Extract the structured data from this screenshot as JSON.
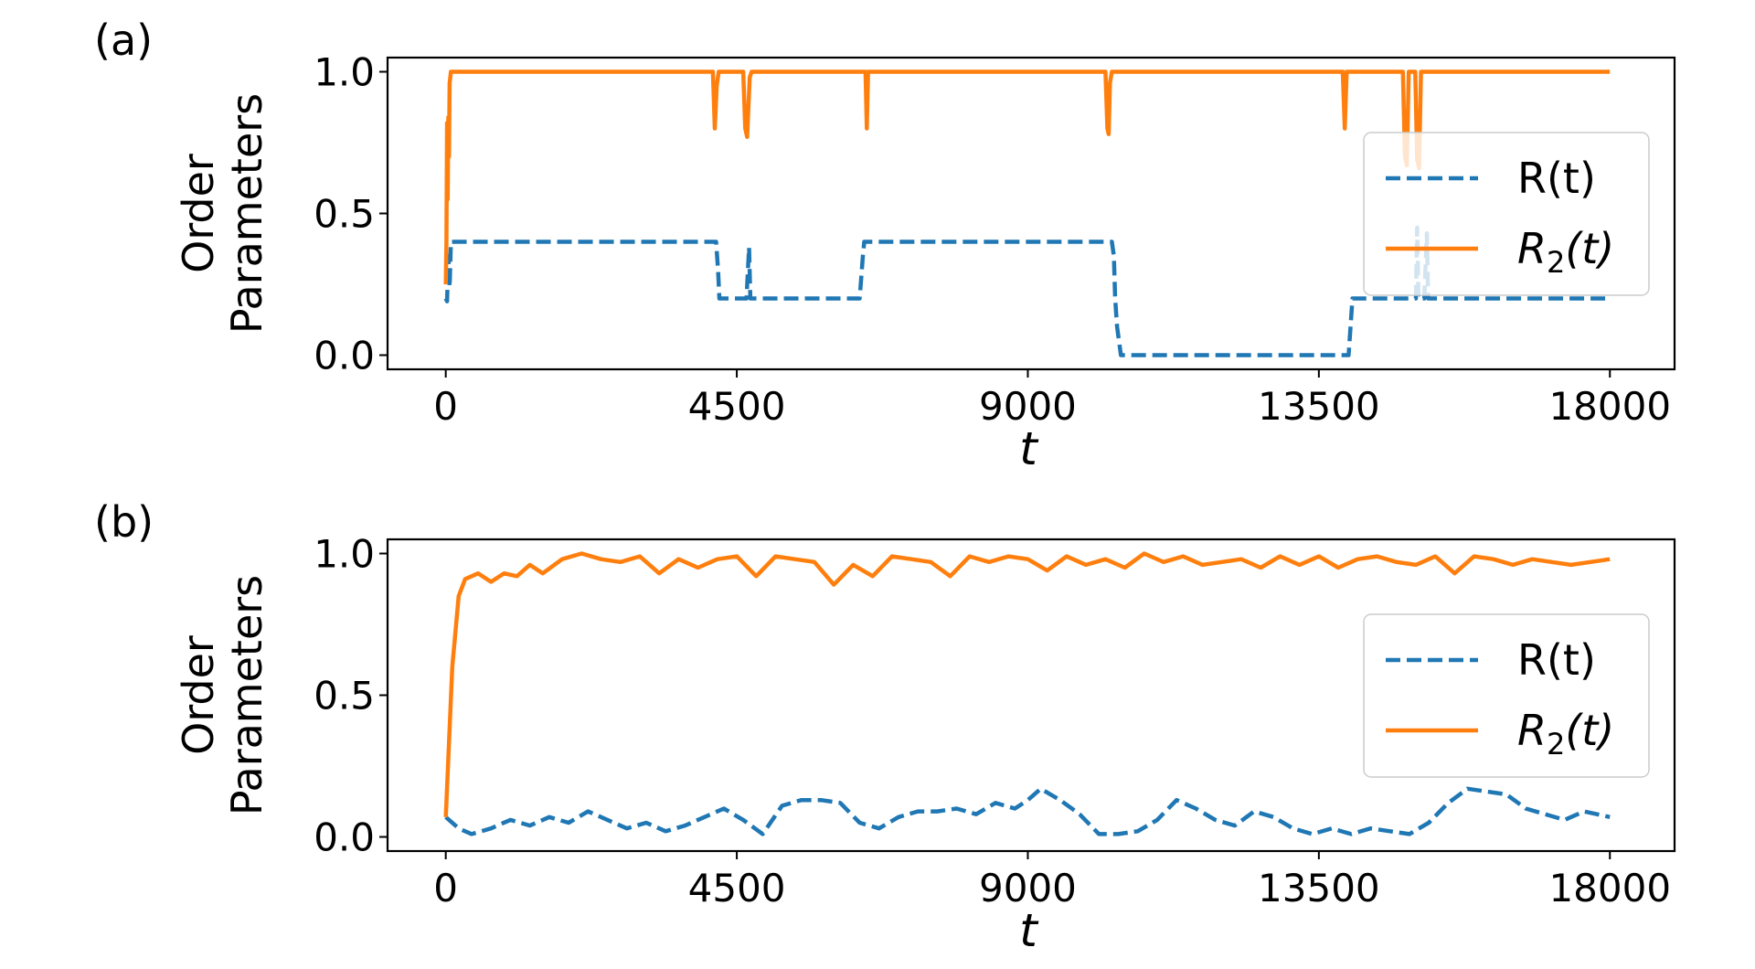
{
  "chart_data": [
    {
      "type": "line",
      "panel_label": "(a)",
      "ylabel": [
        "Order",
        "Parameters"
      ],
      "xlabel": "t",
      "xlim": [
        -900,
        19000
      ],
      "ylim": [
        -0.05,
        1.05
      ],
      "xticks": [
        0,
        4500,
        9000,
        13500,
        18000
      ],
      "xtick_labels": [
        "0",
        "4500",
        "9000",
        "13500",
        "18000"
      ],
      "yticks": [
        0.0,
        0.5,
        1.0
      ],
      "ytick_labels": [
        "0.0",
        "0.5",
        "1.0"
      ],
      "grid": false,
      "legend_position": "right",
      "colors": {
        "R": "#1f77b4",
        "R2": "#ff7f0e"
      },
      "series": [
        {
          "name": "R(t)",
          "style": "dashed",
          "color": "#1f77b4",
          "x": [
            0,
            20,
            40,
            60,
            80,
            100,
            150,
            4180,
            4210,
            4230,
            4260,
            4650,
            4690,
            4710,
            4730,
            4760,
            6400,
            6450,
            6470,
            6500,
            10300,
            10330,
            10350,
            10380,
            10440,
            13960,
            13990,
            14020,
            14050,
            15000,
            15020,
            15040,
            15070,
            15130,
            15170,
            15190,
            15220,
            18000
          ],
          "y": [
            0.2,
            0.19,
            0.35,
            0.24,
            0.4,
            0.4,
            0.4,
            0.4,
            0.3,
            0.2,
            0.2,
            0.2,
            0.38,
            0.2,
            0.2,
            0.2,
            0.2,
            0.35,
            0.4,
            0.4,
            0.4,
            0.35,
            0.2,
            0.1,
            0.0,
            0.0,
            0.1,
            0.2,
            0.2,
            0.2,
            0.45,
            0.2,
            0.2,
            0.2,
            0.43,
            0.2,
            0.2,
            0.2
          ]
        },
        {
          "name": "R_2(t)",
          "style": "solid",
          "color": "#ff7f0e",
          "x": [
            0,
            10,
            20,
            30,
            40,
            50,
            60,
            70,
            80,
            100,
            150,
            4130,
            4160,
            4190,
            4220,
            4600,
            4630,
            4660,
            4700,
            4730,
            6490,
            6510,
            6530,
            6550,
            10200,
            10230,
            10250,
            10270,
            10300,
            13870,
            13900,
            13930,
            14800,
            14830,
            14860,
            14890,
            14990,
            15020,
            15050,
            15080,
            18000
          ],
          "y": [
            0.25,
            0.4,
            0.82,
            0.55,
            0.84,
            0.7,
            0.96,
            0.98,
            1.0,
            1.0,
            1.0,
            1.0,
            0.8,
            0.95,
            1.0,
            1.0,
            0.8,
            0.77,
            0.98,
            1.0,
            1.0,
            0.8,
            1.0,
            1.0,
            1.0,
            0.8,
            0.78,
            0.96,
            1.0,
            1.0,
            0.8,
            1.0,
            1.0,
            0.7,
            0.67,
            1.0,
            1.0,
            0.69,
            0.66,
            1.0,
            1.0
          ]
        }
      ]
    },
    {
      "type": "line",
      "panel_label": "(b)",
      "ylabel": [
        "Order",
        "Parameters"
      ],
      "xlabel": "t",
      "xlim": [
        -900,
        19000
      ],
      "ylim": [
        -0.05,
        1.05
      ],
      "xticks": [
        0,
        4500,
        9000,
        13500,
        18000
      ],
      "xtick_labels": [
        "0",
        "4500",
        "9000",
        "13500",
        "18000"
      ],
      "yticks": [
        0.0,
        0.5,
        1.0
      ],
      "ytick_labels": [
        "0.0",
        "0.5",
        "1.0"
      ],
      "grid": false,
      "legend_position": "right",
      "colors": {
        "R": "#1f77b4",
        "R2": "#ff7f0e"
      },
      "series": [
        {
          "name": "R(t)",
          "style": "dashed",
          "color": "#1f77b4",
          "x": [
            0,
            200,
            400,
            700,
            1000,
            1300,
            1600,
            1900,
            2200,
            2500,
            2800,
            3100,
            3400,
            3700,
            4000,
            4300,
            4600,
            4900,
            5200,
            5500,
            5800,
            6100,
            6400,
            6700,
            7000,
            7300,
            7600,
            7900,
            8200,
            8500,
            8800,
            9000,
            9200,
            9500,
            9800,
            10100,
            10400,
            10700,
            11000,
            11300,
            11600,
            11900,
            12200,
            12500,
            12800,
            13100,
            13400,
            13700,
            14000,
            14300,
            14600,
            14900,
            15200,
            15500,
            15800,
            16100,
            16400,
            16700,
            17000,
            17300,
            17600,
            18000
          ],
          "y": [
            0.07,
            0.03,
            0.01,
            0.03,
            0.06,
            0.04,
            0.07,
            0.05,
            0.09,
            0.06,
            0.03,
            0.05,
            0.02,
            0.04,
            0.07,
            0.1,
            0.06,
            0.01,
            0.11,
            0.13,
            0.13,
            0.12,
            0.05,
            0.03,
            0.07,
            0.09,
            0.09,
            0.1,
            0.08,
            0.12,
            0.1,
            0.13,
            0.17,
            0.13,
            0.08,
            0.01,
            0.01,
            0.02,
            0.06,
            0.13,
            0.1,
            0.06,
            0.04,
            0.09,
            0.07,
            0.03,
            0.01,
            0.03,
            0.01,
            0.03,
            0.02,
            0.01,
            0.05,
            0.12,
            0.17,
            0.16,
            0.15,
            0.1,
            0.08,
            0.06,
            0.09,
            0.07
          ]
        },
        {
          "name": "R_2(t)",
          "style": "solid",
          "color": "#ff7f0e",
          "x": [
            0,
            100,
            200,
            300,
            500,
            700,
            900,
            1100,
            1300,
            1500,
            1800,
            2100,
            2400,
            2700,
            3000,
            3300,
            3600,
            3900,
            4200,
            4500,
            4800,
            5100,
            5400,
            5700,
            6000,
            6300,
            6600,
            6900,
            7200,
            7500,
            7800,
            8100,
            8400,
            8700,
            9000,
            9300,
            9600,
            9900,
            10200,
            10500,
            10800,
            11100,
            11400,
            11700,
            12000,
            12300,
            12600,
            12900,
            13200,
            13500,
            13800,
            14100,
            14400,
            14700,
            15000,
            15300,
            15600,
            15900,
            16200,
            16500,
            16800,
            17100,
            17400,
            17700,
            18000
          ],
          "y": [
            0.07,
            0.6,
            0.85,
            0.91,
            0.93,
            0.9,
            0.93,
            0.92,
            0.96,
            0.93,
            0.98,
            1.0,
            0.98,
            0.97,
            0.99,
            0.93,
            0.98,
            0.95,
            0.98,
            0.99,
            0.92,
            0.99,
            0.98,
            0.97,
            0.89,
            0.96,
            0.92,
            0.99,
            0.98,
            0.97,
            0.92,
            0.99,
            0.97,
            0.99,
            0.98,
            0.94,
            0.99,
            0.96,
            0.98,
            0.95,
            1.0,
            0.97,
            0.99,
            0.96,
            0.97,
            0.98,
            0.95,
            0.99,
            0.96,
            0.99,
            0.95,
            0.98,
            0.99,
            0.97,
            0.96,
            0.99,
            0.93,
            0.99,
            0.98,
            0.96,
            0.98,
            0.97,
            0.96,
            0.97,
            0.98
          ]
        }
      ]
    }
  ]
}
